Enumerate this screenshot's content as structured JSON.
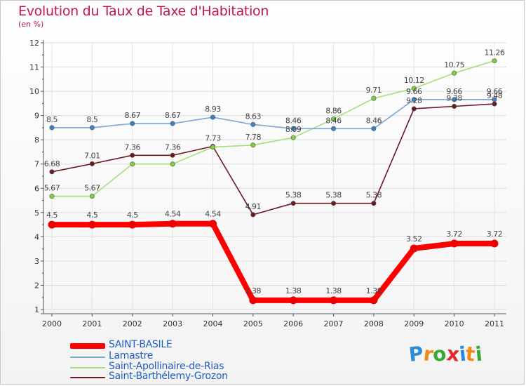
{
  "title": "Evolution du Taux de Taxe d'Habitation",
  "subtitle": "(en %)",
  "logo": {
    "text": "Proxiti",
    "letters": [
      "P",
      "r",
      "o",
      "x",
      "i",
      "t",
      "i"
    ],
    "letter_colors": [
      "#2e8bd6",
      "#f08a1a",
      "#39a935",
      "#e8262a",
      "#2e8bd6",
      "#f08a1a",
      "#39a935"
    ]
  },
  "chart_data": {
    "type": "line",
    "title": "Evolution du Taux de Taxe d'Habitation",
    "ylabel": "(en %)",
    "xlabel": "",
    "x": [
      "2000",
      "2001",
      "2002",
      "2003",
      "2004",
      "2005",
      "2006",
      "2007",
      "2008",
      "2009",
      "2010",
      "2011"
    ],
    "ylim": [
      1,
      12
    ],
    "yticks": [
      "1",
      "2",
      "3",
      "4",
      "5",
      "6",
      "7",
      "8",
      "9",
      "10",
      "11",
      "12"
    ],
    "grid": true,
    "legend_position": "bottom-left",
    "series": [
      {
        "name": "Saint-Barthélemy-Grozon",
        "color": "#6b1a22",
        "marker_color": "#6b1a22",
        "thick": false,
        "values": [
          6.68,
          7.01,
          7.36,
          7.36,
          7.73,
          4.91,
          5.38,
          5.38,
          5.38,
          9.28,
          9.38,
          9.48
        ],
        "labels": [
          "6.68",
          "7.01",
          "7.36",
          "7.36",
          "7.73",
          "4.91",
          "5.38",
          "5.38",
          "5.38",
          "9.28",
          "9.38",
          "9.48"
        ]
      },
      {
        "name": "Saint-Apollinaire-de-Rias",
        "color": "#a5e07a",
        "marker_color": "#7ccf3e",
        "thick": false,
        "values": [
          5.67,
          5.67,
          7.0,
          7.0,
          7.7,
          7.78,
          8.09,
          8.86,
          9.71,
          10.12,
          10.75,
          11.26
        ],
        "labels": [
          "5.67",
          "5.67",
          "",
          "",
          "",
          "7.78",
          "8.09",
          "8.86",
          "9.71",
          "10.12",
          "10.75",
          "11.26"
        ]
      },
      {
        "name": "Lamastre",
        "color": "#7aa8d4",
        "marker_color": "#3a84c6",
        "thick": false,
        "values": [
          8.5,
          8.5,
          8.67,
          8.67,
          8.93,
          8.63,
          8.46,
          8.46,
          8.46,
          9.66,
          9.66,
          9.66
        ],
        "labels": [
          "8.5",
          "8.5",
          "8.67",
          "8.67",
          "8.93",
          "8.63",
          "8.46",
          "8.46",
          "8.46",
          "9.66",
          "9.66",
          "9.66"
        ]
      },
      {
        "name": "SAINT-BASILE",
        "color": "#ff0000",
        "marker_color": "#ee0000",
        "thick": true,
        "values": [
          4.5,
          4.5,
          4.5,
          4.54,
          4.54,
          1.38,
          1.38,
          1.38,
          1.38,
          3.52,
          3.72,
          3.72
        ],
        "labels": [
          "4.5",
          "4.5",
          "4.5",
          "4.54",
          "4.54",
          "1.38",
          "1.38",
          "1.38",
          "1.38",
          "3.52",
          "3.72",
          "3.72"
        ]
      }
    ],
    "legend_order": [
      "SAINT-BASILE",
      "Lamastre",
      "Saint-Apollinaire-de-Rias",
      "Saint-Barthélemy-Grozon"
    ]
  },
  "legend": [
    {
      "label": "SAINT-BASILE",
      "color": "#ff0000",
      "text_color": "#1f5fbf",
      "thick": true
    },
    {
      "label": "Lamastre",
      "color": "#7aa8d4",
      "text_color": "#1f5fbf",
      "thick": false
    },
    {
      "label": "Saint-Apollinaire-de-Rias",
      "color": "#a5e07a",
      "text_color": "#1f5fbf",
      "thick": false
    },
    {
      "label": "Saint-Barthélemy-Grozon",
      "color": "#6b1a22",
      "text_color": "#1f5fbf",
      "thick": false
    }
  ]
}
